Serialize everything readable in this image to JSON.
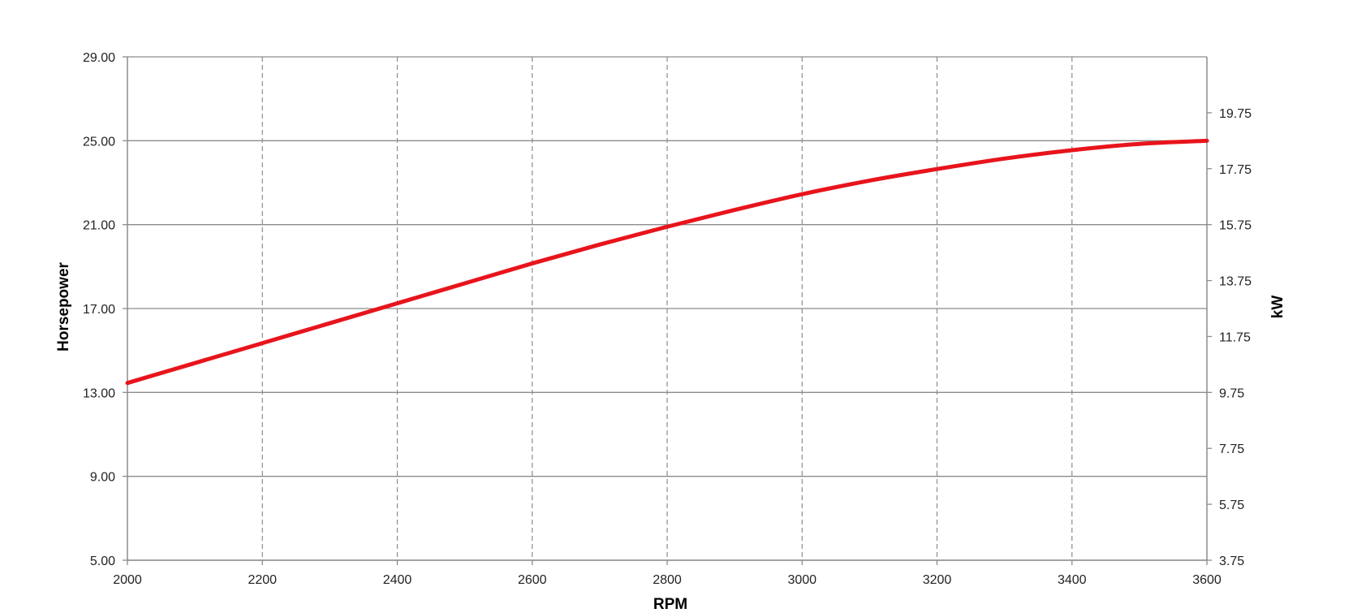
{
  "chart_data": {
    "type": "line",
    "title": "",
    "xlabel": "RPM",
    "ylabel": "Horsepower",
    "y2label": "kW",
    "xlim": [
      2000,
      3600
    ],
    "ylim": [
      5,
      29
    ],
    "y2lim": [
      3.75,
      21.75
    ],
    "xticks": [
      "2000",
      "2200",
      "2400",
      "2600",
      "2800",
      "3000",
      "3200",
      "3400",
      "3600"
    ],
    "yticks": [
      "5.00",
      "9.00",
      "13.00",
      "17.00",
      "21.00",
      "25.00",
      "29.00"
    ],
    "y2ticks": [
      "3.75",
      "5.75",
      "7.75",
      "9.75",
      "11.75",
      "13.75",
      "15.75",
      "17.75",
      "19.75"
    ],
    "grid": {
      "horizontal": "solid",
      "vertical": "dashed"
    },
    "legend": "none",
    "series": [
      {
        "color": "#e8141c",
        "x": [
          2000,
          2100,
          2200,
          2300,
          2400,
          2500,
          2600,
          2700,
          2800,
          2900,
          3000,
          3100,
          3200,
          3300,
          3400,
          3500,
          3600
        ],
        "y": [
          13.45,
          14.4,
          15.35,
          16.3,
          17.25,
          18.2,
          19.15,
          20.05,
          20.9,
          21.7,
          22.45,
          23.1,
          23.65,
          24.15,
          24.55,
          24.85,
          25.0
        ]
      }
    ]
  }
}
